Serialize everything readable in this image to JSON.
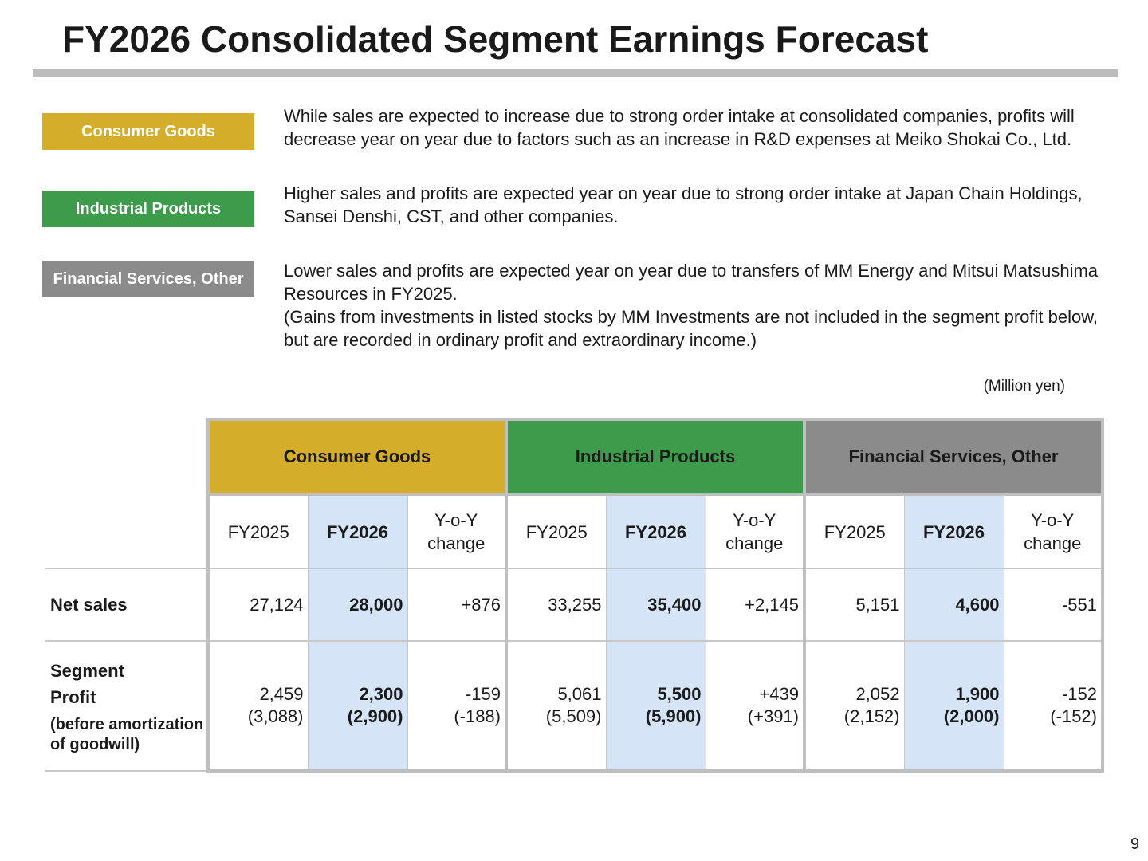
{
  "title": "FY2026 Consolidated Segment Earnings Forecast",
  "colors": {
    "consumer_goods": "#d4ae2b",
    "industrial_products": "#3d9c4c",
    "financial_services": "#8b8b8b",
    "forecast_highlight": "#d5e5f7",
    "title_rule": "#bcbcbc"
  },
  "segments": [
    {
      "tag": "Consumer Goods",
      "description": "While sales are expected to increase due to strong order intake at consolidated companies, profits will decrease year on year due to factors such as an increase in R&D expenses at Meiko Shokai Co., Ltd."
    },
    {
      "tag": "Industrial Products",
      "description": "Higher sales and profits are expected year on year due to strong order intake at Japan Chain Holdings, Sansei Denshi, CST, and other companies."
    },
    {
      "tag": "Financial Services, Other",
      "description": "Lower sales and profits are expected year on year due to transfers of MM Energy and Mitsui Matsushima Resources in FY2025.",
      "note": "(Gains from investments in listed stocks by MM Investments are not included in the segment profit below, but are recorded in ordinary profit and extraordinary income.)"
    }
  ],
  "unit": "(Million yen)",
  "table": {
    "segment_headers": [
      "Consumer Goods",
      "Industrial Products",
      "Financial Services, Other"
    ],
    "col_headers": [
      "FY2025",
      "FY2026",
      "Y-o-Y change"
    ],
    "rows": [
      {
        "label": "Net sales",
        "values": [
          [
            "27,124",
            "28,000",
            "+876"
          ],
          [
            "33,255",
            "35,400",
            "+2,145"
          ],
          [
            "5,151",
            "4,600",
            "-551"
          ]
        ]
      },
      {
        "label": "Segment Profit",
        "sublabel": "(before amortization of goodwill)",
        "values": [
          [
            "2,459",
            "2,300",
            "-159"
          ],
          [
            "5,061",
            "5,500",
            "+439"
          ],
          [
            "2,052",
            "1,900",
            "-152"
          ]
        ],
        "values_before_amortization": [
          [
            "(3,088)",
            "(2,900)",
            "(-188)"
          ],
          [
            "(5,509)",
            "(5,900)",
            "(+391)"
          ],
          [
            "(2,152)",
            "(2,000)",
            "(-152)"
          ]
        ]
      }
    ]
  },
  "page_number": "9"
}
